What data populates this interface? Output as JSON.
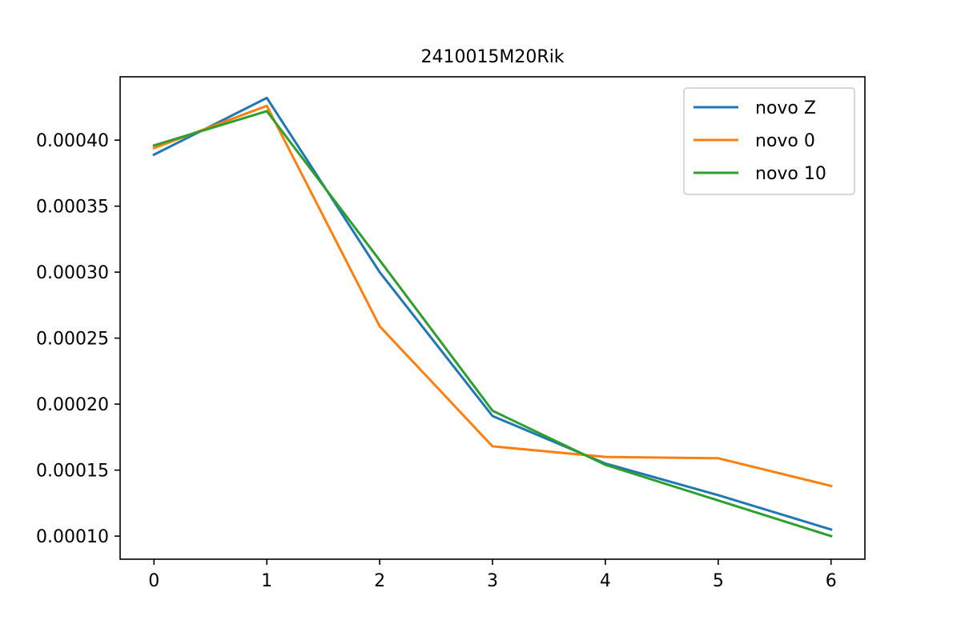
{
  "chart_data": {
    "type": "line",
    "title": "2410015M20Rik",
    "x": [
      0,
      1,
      2,
      3,
      4,
      5,
      6
    ],
    "xlim": [
      -0.3,
      6.3
    ],
    "ylim": [
      8.25e-05,
      0.000448
    ],
    "xticks": [
      "0",
      "1",
      "2",
      "3",
      "4",
      "5",
      "6"
    ],
    "yticks": [
      0.0001,
      0.00015,
      0.0002,
      0.00025,
      0.0003,
      0.00035,
      0.0004
    ],
    "ytick_labels": [
      "0.00010",
      "0.00015",
      "0.00020",
      "0.00025",
      "0.00030",
      "0.00035",
      "0.00040"
    ],
    "grid": false,
    "legend_position": "top-right",
    "series": [
      {
        "name": "novo Z",
        "color": "#1f77b4",
        "values": [
          0.000389,
          0.000432,
          0.0003,
          0.000191,
          0.000155,
          0.000131,
          0.000105
        ]
      },
      {
        "name": "novo 0",
        "color": "#ff7f0e",
        "values": [
          0.000394,
          0.000426,
          0.000259,
          0.000168,
          0.00016,
          0.000159,
          0.000138
        ]
      },
      {
        "name": "novo 10",
        "color": "#2ca02c",
        "values": [
          0.000396,
          0.000422,
          0.000309,
          0.000195,
          0.000154,
          0.000127,
          0.0001
        ]
      }
    ]
  }
}
